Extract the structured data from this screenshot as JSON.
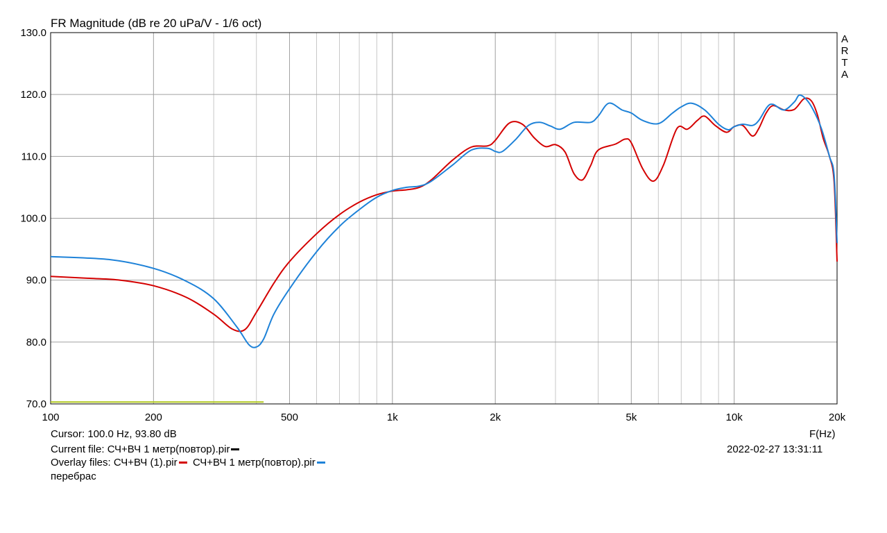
{
  "chart_data": {
    "type": "line",
    "title": "FR Magnitude (dB re 20 uPa/V - 1/6 oct)",
    "xlabel": "F(Hz)",
    "x_scale": "log",
    "xlim": [
      100,
      20000
    ],
    "ylim": [
      70,
      130
    ],
    "y_ticks": [
      130,
      120,
      110,
      100,
      90,
      80,
      70
    ],
    "y_tick_labels": [
      "130.0",
      "120.0",
      "110.0",
      "100.0",
      "90.0",
      "80.0",
      "70.0"
    ],
    "x_tick_values": [
      100,
      200,
      500,
      1000,
      2000,
      5000,
      10000,
      20000
    ],
    "x_tick_labels": [
      "100",
      "200",
      "500",
      "1k",
      "2k",
      "5k",
      "10k",
      "20k"
    ],
    "grid": true,
    "vendor_mark": "ARTA",
    "series": [
      {
        "color": "#d40000",
        "points": [
          [
            100,
            90.6
          ],
          [
            130,
            90.3
          ],
          [
            160,
            90.0
          ],
          [
            200,
            89.1
          ],
          [
            250,
            87.2
          ],
          [
            300,
            84.5
          ],
          [
            340,
            82.1
          ],
          [
            370,
            82.0
          ],
          [
            400,
            84.8
          ],
          [
            450,
            89.5
          ],
          [
            500,
            93.0
          ],
          [
            600,
            97.5
          ],
          [
            700,
            100.6
          ],
          [
            800,
            102.6
          ],
          [
            900,
            103.8
          ],
          [
            1000,
            104.4
          ],
          [
            1100,
            104.6
          ],
          [
            1200,
            105.0
          ],
          [
            1300,
            106.2
          ],
          [
            1500,
            109.4
          ],
          [
            1700,
            111.5
          ],
          [
            1900,
            111.7
          ],
          [
            2000,
            112.6
          ],
          [
            2200,
            115.4
          ],
          [
            2400,
            115.2
          ],
          [
            2600,
            113.0
          ],
          [
            2800,
            111.6
          ],
          [
            3000,
            111.9
          ],
          [
            3200,
            110.7
          ],
          [
            3400,
            107.2
          ],
          [
            3600,
            106.2
          ],
          [
            3800,
            108.5
          ],
          [
            4000,
            111.0
          ],
          [
            4500,
            112.0
          ],
          [
            4800,
            112.8
          ],
          [
            5000,
            112.2
          ],
          [
            5400,
            108.0
          ],
          [
            5800,
            106.0
          ],
          [
            6200,
            108.5
          ],
          [
            6800,
            114.5
          ],
          [
            7300,
            114.4
          ],
          [
            7800,
            115.8
          ],
          [
            8200,
            116.5
          ],
          [
            8800,
            115.0
          ],
          [
            9500,
            113.9
          ],
          [
            10000,
            114.8
          ],
          [
            10600,
            115.0
          ],
          [
            11300,
            113.3
          ],
          [
            11800,
            114.5
          ],
          [
            12400,
            117.0
          ],
          [
            13000,
            118.2
          ],
          [
            14000,
            117.5
          ],
          [
            15000,
            117.6
          ],
          [
            16000,
            119.3
          ],
          [
            16800,
            119.0
          ],
          [
            17500,
            116.8
          ],
          [
            18200,
            113.0
          ],
          [
            19000,
            110.0
          ],
          [
            19600,
            106.0
          ],
          [
            20000,
            93.0
          ]
        ]
      },
      {
        "color": "#1e82d8",
        "points": [
          [
            100,
            93.8
          ],
          [
            150,
            93.3
          ],
          [
            200,
            91.9
          ],
          [
            250,
            89.8
          ],
          [
            300,
            87.0
          ],
          [
            350,
            82.5
          ],
          [
            380,
            79.6
          ],
          [
            400,
            79.2
          ],
          [
            420,
            80.5
          ],
          [
            450,
            84.5
          ],
          [
            500,
            88.6
          ],
          [
            600,
            94.6
          ],
          [
            700,
            98.7
          ],
          [
            800,
            101.4
          ],
          [
            900,
            103.4
          ],
          [
            1000,
            104.5
          ],
          [
            1100,
            105.0
          ],
          [
            1200,
            105.2
          ],
          [
            1300,
            106.0
          ],
          [
            1500,
            108.6
          ],
          [
            1700,
            111.0
          ],
          [
            1900,
            111.3
          ],
          [
            2000,
            110.8
          ],
          [
            2100,
            110.8
          ],
          [
            2300,
            112.8
          ],
          [
            2500,
            115.0
          ],
          [
            2700,
            115.5
          ],
          [
            2900,
            114.9
          ],
          [
            3100,
            114.4
          ],
          [
            3400,
            115.5
          ],
          [
            3800,
            115.5
          ],
          [
            4000,
            116.5
          ],
          [
            4300,
            118.6
          ],
          [
            4700,
            117.5
          ],
          [
            5000,
            117.0
          ],
          [
            5400,
            115.8
          ],
          [
            6000,
            115.3
          ],
          [
            6600,
            117.0
          ],
          [
            7000,
            118.0
          ],
          [
            7500,
            118.6
          ],
          [
            8200,
            117.5
          ],
          [
            9000,
            115.2
          ],
          [
            9600,
            114.3
          ],
          [
            10000,
            114.8
          ],
          [
            10600,
            115.2
          ],
          [
            11300,
            115.0
          ],
          [
            11800,
            115.8
          ],
          [
            12500,
            118.0
          ],
          [
            13000,
            118.4
          ],
          [
            14000,
            117.5
          ],
          [
            15000,
            118.8
          ],
          [
            15500,
            119.9
          ],
          [
            16200,
            119.3
          ],
          [
            17000,
            117.6
          ],
          [
            18000,
            114.5
          ],
          [
            19000,
            110.0
          ],
          [
            19600,
            107.0
          ],
          [
            20000,
            96.0
          ]
        ]
      },
      {
        "color": "#b0c81e",
        "points": [
          [
            100,
            70.3
          ],
          [
            420,
            70.3
          ]
        ]
      }
    ]
  },
  "info": {
    "cursor": "Cursor: 100.0 Hz, 93.80 dB",
    "current_file": "Current file: СЧ+ВЧ 1 метр(повтор).pir",
    "current_file_color": "#000000",
    "overlay_prefix": "Overlay files: ",
    "overlay_file_1": "СЧ+ВЧ (1).pir",
    "overlay_file_1_color": "#d40000",
    "overlay_file_2": "СЧ+ВЧ 1 метр(повтор).pir",
    "overlay_file_2_color": "#1e82d8",
    "note": "перебрас",
    "datetime": "2022-02-27   13:31:11"
  }
}
